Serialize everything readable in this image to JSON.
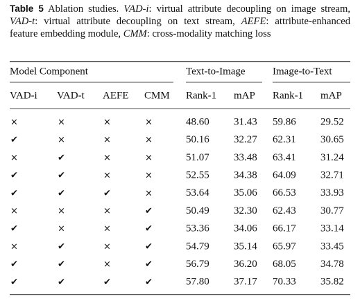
{
  "caption": {
    "label": "Table 5",
    "segments": [
      {
        "text": " Ablation studies. ",
        "italic": false
      },
      {
        "text": "VAD-i",
        "italic": true
      },
      {
        "text": ": virtual attribute decoupling on image stream, ",
        "italic": false
      },
      {
        "text": "VAD-t",
        "italic": true
      },
      {
        "text": ": virtual attribute decoupling on text stream, ",
        "italic": false
      },
      {
        "text": "AEFE",
        "italic": true
      },
      {
        "text": ": attribute-enhanced feature embedding module, ",
        "italic": false
      },
      {
        "text": "CMM",
        "italic": true
      },
      {
        "text": ": cross-modality matching loss",
        "italic": false
      }
    ]
  },
  "table": {
    "groups": [
      "Model Component",
      "Text-to-Image",
      "Image-to-Text"
    ],
    "columns": [
      "VAD-i",
      "VAD-t",
      "AEFE",
      "CMM",
      "Rank-1",
      "mAP",
      "Rank-1",
      "mAP"
    ],
    "rows": [
      [
        "×",
        "×",
        "×",
        "×",
        "48.60",
        "31.43",
        "59.86",
        "29.52"
      ],
      [
        "✔",
        "×",
        "×",
        "×",
        "50.16",
        "32.27",
        "62.31",
        "30.65"
      ],
      [
        "×",
        "✔",
        "×",
        "×",
        "51.07",
        "33.48",
        "63.41",
        "31.24"
      ],
      [
        "✔",
        "✔",
        "×",
        "×",
        "52.55",
        "34.38",
        "64.09",
        "32.71"
      ],
      [
        "✔",
        "✔",
        "✔",
        "×",
        "53.64",
        "35.06",
        "66.53",
        "33.93"
      ],
      [
        "×",
        "×",
        "×",
        "✔",
        "50.49",
        "32.30",
        "62.43",
        "30.77"
      ],
      [
        "✔",
        "×",
        "×",
        "✔",
        "53.36",
        "34.06",
        "66.17",
        "33.14"
      ],
      [
        "×",
        "✔",
        "×",
        "✔",
        "54.79",
        "35.14",
        "65.97",
        "33.45"
      ],
      [
        "✔",
        "✔",
        "×",
        "✔",
        "56.79",
        "36.20",
        "68.05",
        "34.78"
      ],
      [
        "✔",
        "✔",
        "✔",
        "✔",
        "57.80",
        "37.17",
        "70.33",
        "35.82"
      ]
    ]
  }
}
